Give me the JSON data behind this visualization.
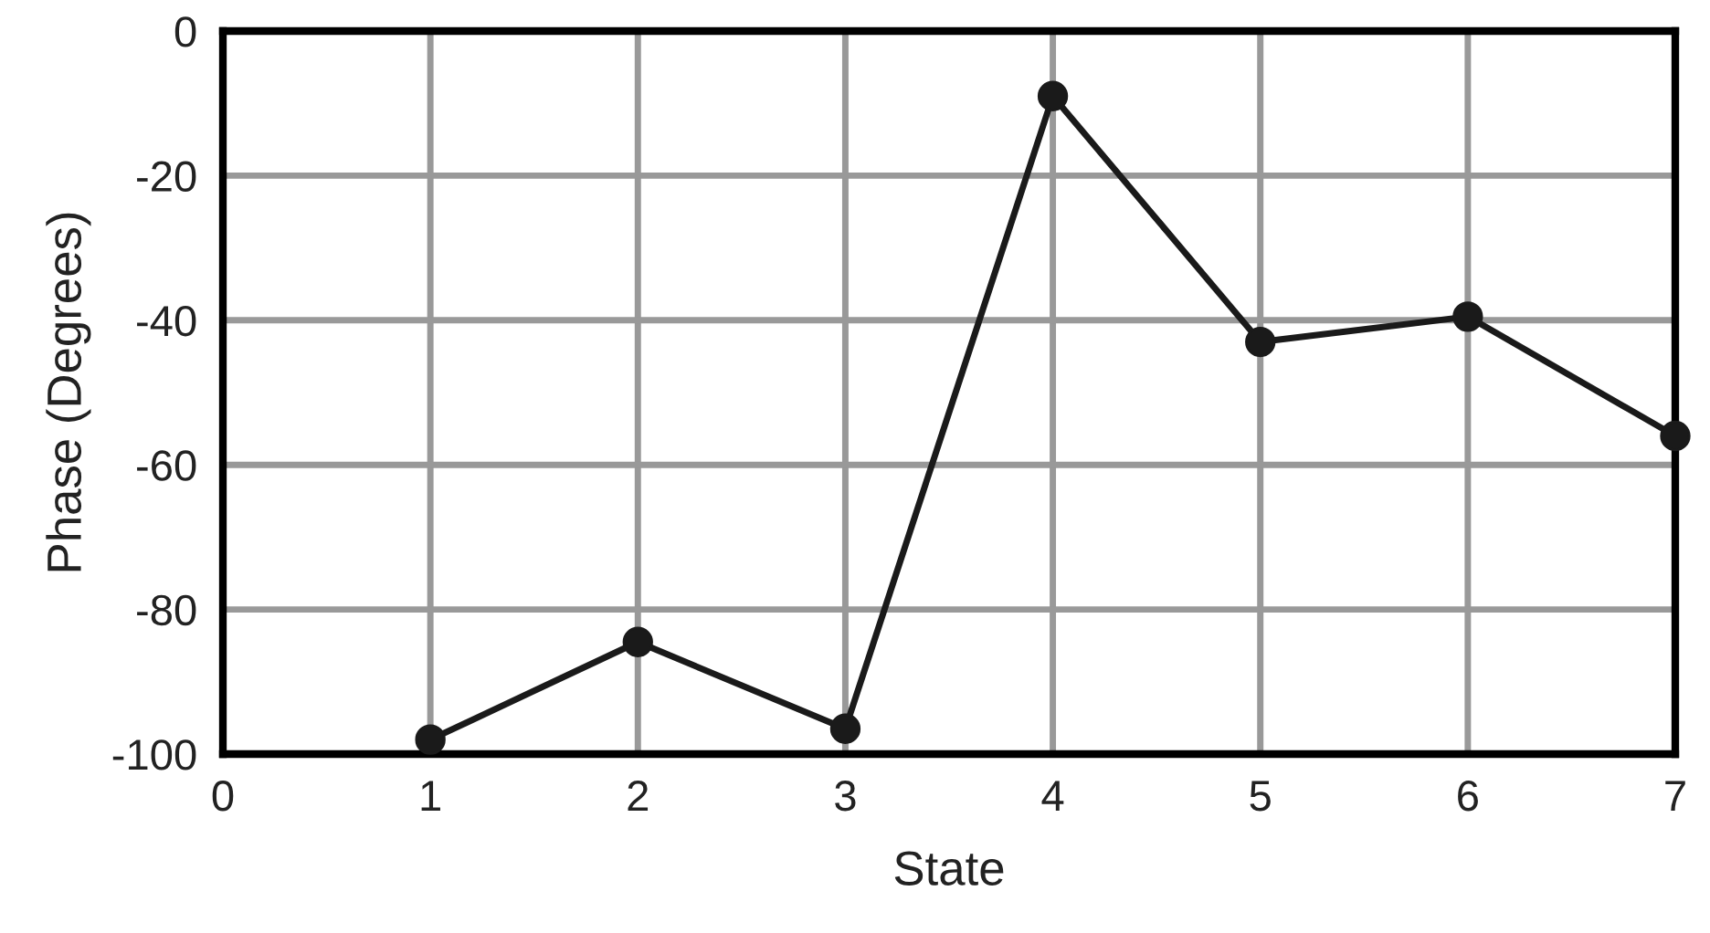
{
  "chart_data": {
    "type": "line",
    "xlabel": "State",
    "ylabel": "Phase (Degrees)",
    "x": [
      1,
      2,
      3,
      4,
      5,
      6,
      7
    ],
    "series": [
      {
        "color": "#1a1a1a",
        "values": [
          -98,
          -84.5,
          -96.5,
          -9,
          -43,
          -39.5,
          -56
        ]
      }
    ],
    "xlim": [
      0,
      7
    ],
    "xticks": [
      0,
      1,
      2,
      3,
      4,
      5,
      6,
      7
    ],
    "ylim": [
      -100,
      0
    ],
    "yticks": [
      -100,
      -80,
      -60,
      -40,
      -20,
      0
    ],
    "grid": true,
    "marker": "circle",
    "line_style": "solid",
    "legend": false
  }
}
